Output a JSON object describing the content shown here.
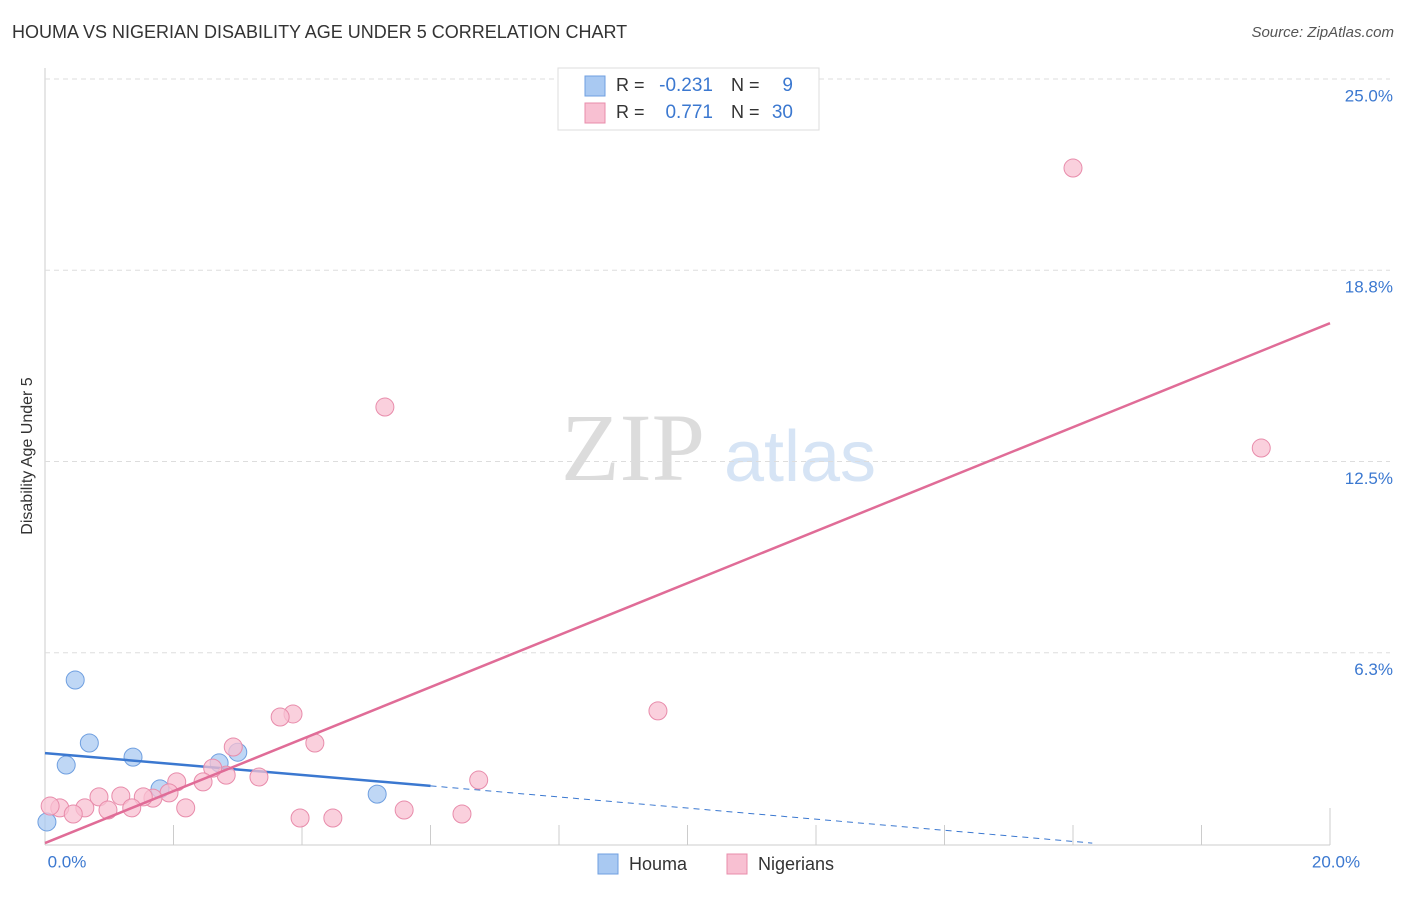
{
  "chart_data": {
    "type": "scatter",
    "title": "HOUMA VS NIGERIAN DISABILITY AGE UNDER 5 CORRELATION CHART",
    "source": "Source: ZipAtlas.com",
    "watermark": [
      "ZIP",
      "atlas"
    ],
    "y_label": "Disability Age Under 5",
    "stat_labels": [
      "R =",
      "N ="
    ],
    "xlim": [
      0,
      20
    ],
    "ylim": [
      0,
      25
    ],
    "xticks": [
      {
        "value": 0,
        "label": "0.0%"
      },
      {
        "value": 20,
        "label": "20.0%"
      }
    ],
    "x_minor_ticks": [
      2,
      4,
      6,
      8,
      10,
      12,
      14,
      16,
      18
    ],
    "yticks": [
      {
        "value": 6.25,
        "label": "6.3%"
      },
      {
        "value": 12.5,
        "label": "12.5%"
      },
      {
        "value": 18.75,
        "label": "18.8%"
      },
      {
        "value": 25,
        "label": "25.0%"
      }
    ],
    "grid": true,
    "series": [
      {
        "name": "Houma",
        "color": "#a9c9f2",
        "edge": "#6f9fe0",
        "line_color": "#3b78d0",
        "r": -0.231,
        "n": 9,
        "x": [
          0.03,
          0.47,
          0.69,
          0.33,
          1.37,
          1.79,
          2.71,
          3.0,
          5.17
        ],
        "values": [
          0.72,
          5.36,
          3.3,
          2.58,
          2.84,
          1.8,
          2.65,
          3.0,
          1.63
        ],
        "trend_x": [
          0,
          6,
          16.3
        ],
        "trend_y": [
          2.97,
          1.9,
          0.03
        ]
      },
      {
        "name": "Nigerians",
        "color": "#f8c0d2",
        "edge": "#e88cab",
        "line_color": "#e06c97",
        "r": 0.771,
        "n": 30,
        "x": [
          16.0,
          5.29,
          18.93,
          9.54,
          3.86,
          3.66,
          4.2,
          2.93,
          6.75,
          3.33,
          2.82,
          2.61,
          2.05,
          2.46,
          1.93,
          1.68,
          1.53,
          1.18,
          0.84,
          1.35,
          0.98,
          0.62,
          0.23,
          0.08,
          0.44,
          2.19,
          3.97,
          4.48,
          5.59,
          6.49
        ],
        "values": [
          22.09,
          14.28,
          12.94,
          4.35,
          4.25,
          4.15,
          3.3,
          3.17,
          2.09,
          2.19,
          2.25,
          2.48,
          2.03,
          2.03,
          1.67,
          1.5,
          1.54,
          1.57,
          1.54,
          1.18,
          1.11,
          1.18,
          1.18,
          1.24,
          0.98,
          1.18,
          0.85,
          0.85,
          1.11,
          0.98
        ],
        "trend_x": [
          0,
          20
        ],
        "trend_y": [
          0.03,
          17.02
        ]
      }
    ]
  }
}
